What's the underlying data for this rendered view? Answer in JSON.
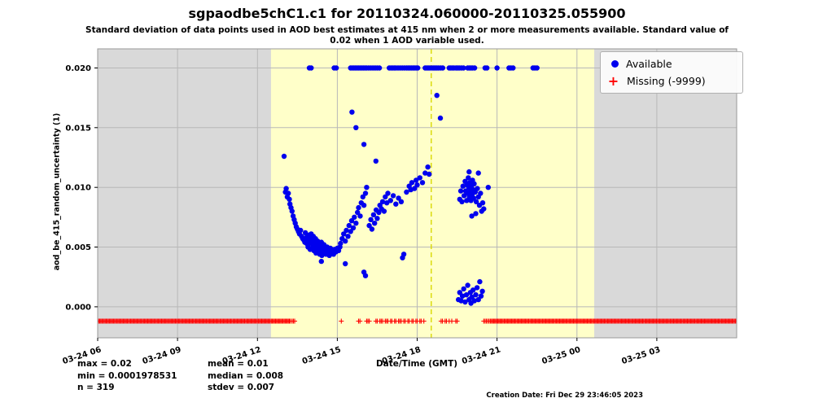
{
  "chart_data": {
    "type": "scatter",
    "title": "sgpaodbe5chC1.c1 for 20110324.060000-20110325.055900",
    "subtitle_line1": "Standard deviation of data points used in AOD best estimates at 415 nm when 2 or more measurements available. Standard value of",
    "subtitle_line2": "0.02 when 1 AOD variable used.",
    "xlabel": "Date/Time (GMT)",
    "ylabel": "aod_be_415_random_uncertainty (1)",
    "xlim": [
      6,
      30
    ],
    "ylim": [
      -0.0026,
      0.0216
    ],
    "grid": true,
    "legend_position": "upper right",
    "plot_bg": "#d9d9d9",
    "grid_color": "#b8b8b8",
    "day_band": {
      "start": 12.51,
      "end": 24.65,
      "color": "#ffffc9"
    },
    "solar_noon_line": {
      "x": 18.53,
      "color": "#d8d800",
      "style": "dashed"
    },
    "x_ticks": [
      {
        "value": 6,
        "label": "03-24 06"
      },
      {
        "value": 9,
        "label": "03-24 09"
      },
      {
        "value": 12,
        "label": "03-24 12"
      },
      {
        "value": 15,
        "label": "03-24 15"
      },
      {
        "value": 18,
        "label": "03-24 18"
      },
      {
        "value": 21,
        "label": "03-24 21"
      },
      {
        "value": 24,
        "label": "03-25 00"
      },
      {
        "value": 27,
        "label": "03-25 03"
      }
    ],
    "y_ticks": [
      {
        "value": 0.0,
        "label": "0.000"
      },
      {
        "value": 0.005,
        "label": "0.005"
      },
      {
        "value": 0.01,
        "label": "0.010"
      },
      {
        "value": 0.015,
        "label": "0.015"
      },
      {
        "value": 0.02,
        "label": "0.020"
      }
    ],
    "series": [
      {
        "name": "Available",
        "marker": "circle",
        "color": "#0000ee",
        "points": [
          [
            13.95,
            0.02
          ],
          [
            14.02,
            0.02
          ],
          [
            14.88,
            0.02
          ],
          [
            14.96,
            0.02
          ],
          [
            15.5,
            0.02
          ],
          [
            15.56,
            0.02
          ],
          [
            15.62,
            0.02
          ],
          [
            15.68,
            0.02
          ],
          [
            15.74,
            0.02
          ],
          [
            15.8,
            0.02
          ],
          [
            15.86,
            0.02
          ],
          [
            15.92,
            0.02
          ],
          [
            15.98,
            0.02
          ],
          [
            16.04,
            0.02
          ],
          [
            16.1,
            0.02
          ],
          [
            16.18,
            0.02
          ],
          [
            16.26,
            0.02
          ],
          [
            16.34,
            0.02
          ],
          [
            16.42,
            0.02
          ],
          [
            16.5,
            0.02
          ],
          [
            16.58,
            0.02
          ],
          [
            16.95,
            0.02
          ],
          [
            17.02,
            0.02
          ],
          [
            17.08,
            0.02
          ],
          [
            17.14,
            0.02
          ],
          [
            17.2,
            0.02
          ],
          [
            17.28,
            0.02
          ],
          [
            17.36,
            0.02
          ],
          [
            17.44,
            0.02
          ],
          [
            17.52,
            0.02
          ],
          [
            17.6,
            0.02
          ],
          [
            17.66,
            0.02
          ],
          [
            17.72,
            0.02
          ],
          [
            17.78,
            0.02
          ],
          [
            17.84,
            0.02
          ],
          [
            17.9,
            0.02
          ],
          [
            17.96,
            0.02
          ],
          [
            18.02,
            0.02
          ],
          [
            18.3,
            0.02
          ],
          [
            18.36,
            0.02
          ],
          [
            18.42,
            0.02
          ],
          [
            18.48,
            0.02
          ],
          [
            18.56,
            0.02
          ],
          [
            18.62,
            0.02
          ],
          [
            18.68,
            0.02
          ],
          [
            18.74,
            0.02
          ],
          [
            18.8,
            0.02
          ],
          [
            18.88,
            0.02
          ],
          [
            18.96,
            0.02
          ],
          [
            19.2,
            0.02
          ],
          [
            19.26,
            0.02
          ],
          [
            19.32,
            0.02
          ],
          [
            19.38,
            0.02
          ],
          [
            19.46,
            0.02
          ],
          [
            19.52,
            0.02
          ],
          [
            19.58,
            0.02
          ],
          [
            19.66,
            0.02
          ],
          [
            19.74,
            0.02
          ],
          [
            19.9,
            0.02
          ],
          [
            19.96,
            0.02
          ],
          [
            20.02,
            0.02
          ],
          [
            20.08,
            0.02
          ],
          [
            20.16,
            0.02
          ],
          [
            20.55,
            0.02
          ],
          [
            20.62,
            0.02
          ],
          [
            21.0,
            0.02
          ],
          [
            21.45,
            0.02
          ],
          [
            21.52,
            0.02
          ],
          [
            21.6,
            0.02
          ],
          [
            22.35,
            0.02
          ],
          [
            22.42,
            0.02
          ],
          [
            22.5,
            0.02
          ],
          [
            13.0,
            0.0126
          ],
          [
            13.05,
            0.0096
          ],
          [
            13.08,
            0.0099
          ],
          [
            13.12,
            0.0092
          ],
          [
            13.16,
            0.0095
          ],
          [
            13.2,
            0.009
          ],
          [
            13.22,
            0.0086
          ],
          [
            13.26,
            0.0083
          ],
          [
            13.3,
            0.008
          ],
          [
            13.34,
            0.0076
          ],
          [
            13.38,
            0.0073
          ],
          [
            13.42,
            0.007
          ],
          [
            13.46,
            0.0067
          ],
          [
            13.5,
            0.0065
          ],
          [
            13.54,
            0.0063
          ],
          [
            13.58,
            0.0061
          ],
          [
            13.62,
            0.0064
          ],
          [
            13.66,
            0.0059
          ],
          [
            13.7,
            0.0057
          ],
          [
            13.74,
            0.0056
          ],
          [
            13.78,
            0.0054
          ],
          [
            13.85,
            0.0053
          ],
          [
            13.8,
            0.0062
          ],
          [
            13.84,
            0.0058
          ],
          [
            13.88,
            0.0055
          ],
          [
            13.9,
            0.005
          ],
          [
            13.92,
            0.006
          ],
          [
            13.94,
            0.0053
          ],
          [
            13.96,
            0.0057
          ],
          [
            13.98,
            0.0048
          ],
          [
            14.0,
            0.0054
          ],
          [
            14.02,
            0.0061
          ],
          [
            14.04,
            0.0049
          ],
          [
            14.06,
            0.0056
          ],
          [
            14.08,
            0.0052
          ],
          [
            14.1,
            0.0059
          ],
          [
            14.12,
            0.0047
          ],
          [
            14.14,
            0.0054
          ],
          [
            14.16,
            0.005
          ],
          [
            14.18,
            0.0057
          ],
          [
            14.2,
            0.0045
          ],
          [
            14.22,
            0.0052
          ],
          [
            14.24,
            0.0048
          ],
          [
            14.26,
            0.0055
          ],
          [
            14.28,
            0.005
          ],
          [
            14.3,
            0.0046
          ],
          [
            14.32,
            0.0053
          ],
          [
            14.34,
            0.0044
          ],
          [
            14.36,
            0.0051
          ],
          [
            14.38,
            0.0047
          ],
          [
            14.4,
            0.0054
          ],
          [
            14.42,
            0.0043
          ],
          [
            14.44,
            0.005
          ],
          [
            14.46,
            0.0046
          ],
          [
            14.5,
            0.0052
          ],
          [
            14.54,
            0.0048
          ],
          [
            14.58,
            0.0044
          ],
          [
            14.62,
            0.005
          ],
          [
            14.66,
            0.0046
          ],
          [
            14.7,
            0.0043
          ],
          [
            14.74,
            0.0049
          ],
          [
            14.78,
            0.0045
          ],
          [
            14.82,
            0.0047
          ],
          [
            14.86,
            0.0044
          ],
          [
            14.9,
            0.0048
          ],
          [
            14.95,
            0.0046
          ],
          [
            15.0,
            0.0049
          ],
          [
            15.05,
            0.0047
          ],
          [
            15.1,
            0.005
          ],
          [
            14.4,
            0.0038
          ],
          [
            15.3,
            0.0036
          ],
          [
            16.0,
            0.0029
          ],
          [
            16.06,
            0.0026
          ],
          [
            15.12,
            0.0053
          ],
          [
            15.18,
            0.0057
          ],
          [
            15.24,
            0.0061
          ],
          [
            15.3,
            0.0055
          ],
          [
            15.34,
            0.0064
          ],
          [
            15.4,
            0.0059
          ],
          [
            15.44,
            0.0068
          ],
          [
            15.5,
            0.0063
          ],
          [
            15.54,
            0.0072
          ],
          [
            15.6,
            0.0066
          ],
          [
            15.64,
            0.0075
          ],
          [
            15.7,
            0.007
          ],
          [
            15.76,
            0.0079
          ],
          [
            15.8,
            0.0083
          ],
          [
            15.86,
            0.0076
          ],
          [
            15.9,
            0.0087
          ],
          [
            15.96,
            0.0092
          ],
          [
            16.0,
            0.0085
          ],
          [
            16.06,
            0.0095
          ],
          [
            16.1,
            0.01
          ],
          [
            15.55,
            0.0163
          ],
          [
            15.7,
            0.015
          ],
          [
            16.0,
            0.0136
          ],
          [
            16.45,
            0.0122
          ],
          [
            16.2,
            0.0068
          ],
          [
            16.26,
            0.0073
          ],
          [
            16.3,
            0.0065
          ],
          [
            16.36,
            0.0077
          ],
          [
            16.4,
            0.007
          ],
          [
            16.46,
            0.0081
          ],
          [
            16.5,
            0.0074
          ],
          [
            16.56,
            0.0079
          ],
          [
            16.6,
            0.0085
          ],
          [
            16.66,
            0.0082
          ],
          [
            16.7,
            0.0088
          ],
          [
            16.76,
            0.008
          ],
          [
            16.8,
            0.0092
          ],
          [
            16.86,
            0.0087
          ],
          [
            16.9,
            0.0095
          ],
          [
            17.0,
            0.0089
          ],
          [
            17.1,
            0.0093
          ],
          [
            17.2,
            0.0086
          ],
          [
            17.3,
            0.0091
          ],
          [
            17.4,
            0.0088
          ],
          [
            17.45,
            0.0041
          ],
          [
            17.5,
            0.0044
          ],
          [
            17.6,
            0.0096
          ],
          [
            17.7,
            0.0101
          ],
          [
            17.76,
            0.0098
          ],
          [
            17.8,
            0.0104
          ],
          [
            17.9,
            0.0099
          ],
          [
            17.96,
            0.0106
          ],
          [
            18.0,
            0.0102
          ],
          [
            18.1,
            0.0108
          ],
          [
            18.2,
            0.0104
          ],
          [
            18.3,
            0.0112
          ],
          [
            18.4,
            0.0117
          ],
          [
            18.45,
            0.0111
          ],
          [
            18.74,
            0.0177
          ],
          [
            18.87,
            0.0158
          ],
          [
            19.6,
            0.009
          ],
          [
            19.64,
            0.0097
          ],
          [
            19.68,
            0.0088
          ],
          [
            19.72,
            0.0101
          ],
          [
            19.76,
            0.0093
          ],
          [
            19.8,
            0.0105
          ],
          [
            19.82,
            0.0097
          ],
          [
            19.86,
            0.0089
          ],
          [
            19.88,
            0.0102
          ],
          [
            19.9,
            0.0095
          ],
          [
            19.92,
            0.0108
          ],
          [
            19.94,
            0.01
          ],
          [
            19.96,
            0.0092
          ],
          [
            19.98,
            0.0104
          ],
          [
            20.0,
            0.0097
          ],
          [
            20.02,
            0.0089
          ],
          [
            20.04,
            0.0101
          ],
          [
            20.06,
            0.0094
          ],
          [
            20.08,
            0.0106
          ],
          [
            20.1,
            0.0098
          ],
          [
            20.12,
            0.0091
          ],
          [
            20.14,
            0.0103
          ],
          [
            20.18,
            0.0096
          ],
          [
            20.22,
            0.0088
          ],
          [
            20.26,
            0.0099
          ],
          [
            20.3,
            0.0092
          ],
          [
            20.34,
            0.0085
          ],
          [
            20.38,
            0.0095
          ],
          [
            20.42,
            0.008
          ],
          [
            20.46,
            0.0087
          ],
          [
            20.5,
            0.0082
          ],
          [
            20.67,
            0.01
          ],
          [
            20.3,
            0.0112
          ],
          [
            19.95,
            0.0113
          ],
          [
            20.05,
            0.0076
          ],
          [
            20.2,
            0.0078
          ],
          [
            19.55,
            0.0006
          ],
          [
            19.6,
            0.0012
          ],
          [
            19.65,
            0.0005
          ],
          [
            19.7,
            0.0009
          ],
          [
            19.75,
            0.0015
          ],
          [
            19.8,
            0.0004
          ],
          [
            19.85,
            0.001
          ],
          [
            19.9,
            0.0018
          ],
          [
            19.95,
            0.0006
          ],
          [
            20.0,
            0.0012
          ],
          [
            20.02,
            0.0003
          ],
          [
            20.05,
            0.0008
          ],
          [
            20.1,
            0.0014
          ],
          [
            20.15,
            0.0005
          ],
          [
            20.2,
            0.001
          ],
          [
            20.25,
            0.0016
          ],
          [
            20.3,
            0.0006
          ],
          [
            20.35,
            0.0021
          ],
          [
            20.4,
            0.0009
          ],
          [
            20.45,
            0.0013
          ]
        ]
      },
      {
        "name": "Missing (-9999)",
        "marker": "plus",
        "color": "#ff0000",
        "value": -0.0012,
        "ranges": [
          [
            6.0,
            13.25,
            0.04
          ],
          [
            20.75,
            30.0,
            0.04
          ]
        ],
        "sparse_x": [
          13.3,
          13.35,
          13.4,
          15.15,
          15.8,
          15.85,
          16.1,
          16.15,
          16.2,
          16.45,
          16.5,
          16.6,
          16.65,
          16.7,
          16.8,
          16.85,
          16.9,
          17.0,
          17.05,
          17.15,
          17.2,
          17.3,
          17.35,
          17.4,
          17.5,
          17.55,
          17.65,
          17.7,
          17.8,
          17.85,
          17.95,
          18.0,
          18.1,
          18.15,
          18.25,
          18.9,
          18.95,
          19.05,
          19.1,
          19.2,
          19.3,
          19.45,
          19.5,
          20.5,
          20.55,
          20.6,
          20.65,
          20.7
        ]
      }
    ],
    "stats": {
      "col1": [
        "max = 0.02",
        "min = 0.0001978531",
        "n = 319"
      ],
      "col2": [
        "mean = 0.01",
        "median = 0.008",
        "stdev = 0.007"
      ]
    },
    "creation_date": "Creation Date: Fri Dec 29 23:46:05 2023"
  },
  "icons": {
    "missing_marker_glyph": "+"
  }
}
